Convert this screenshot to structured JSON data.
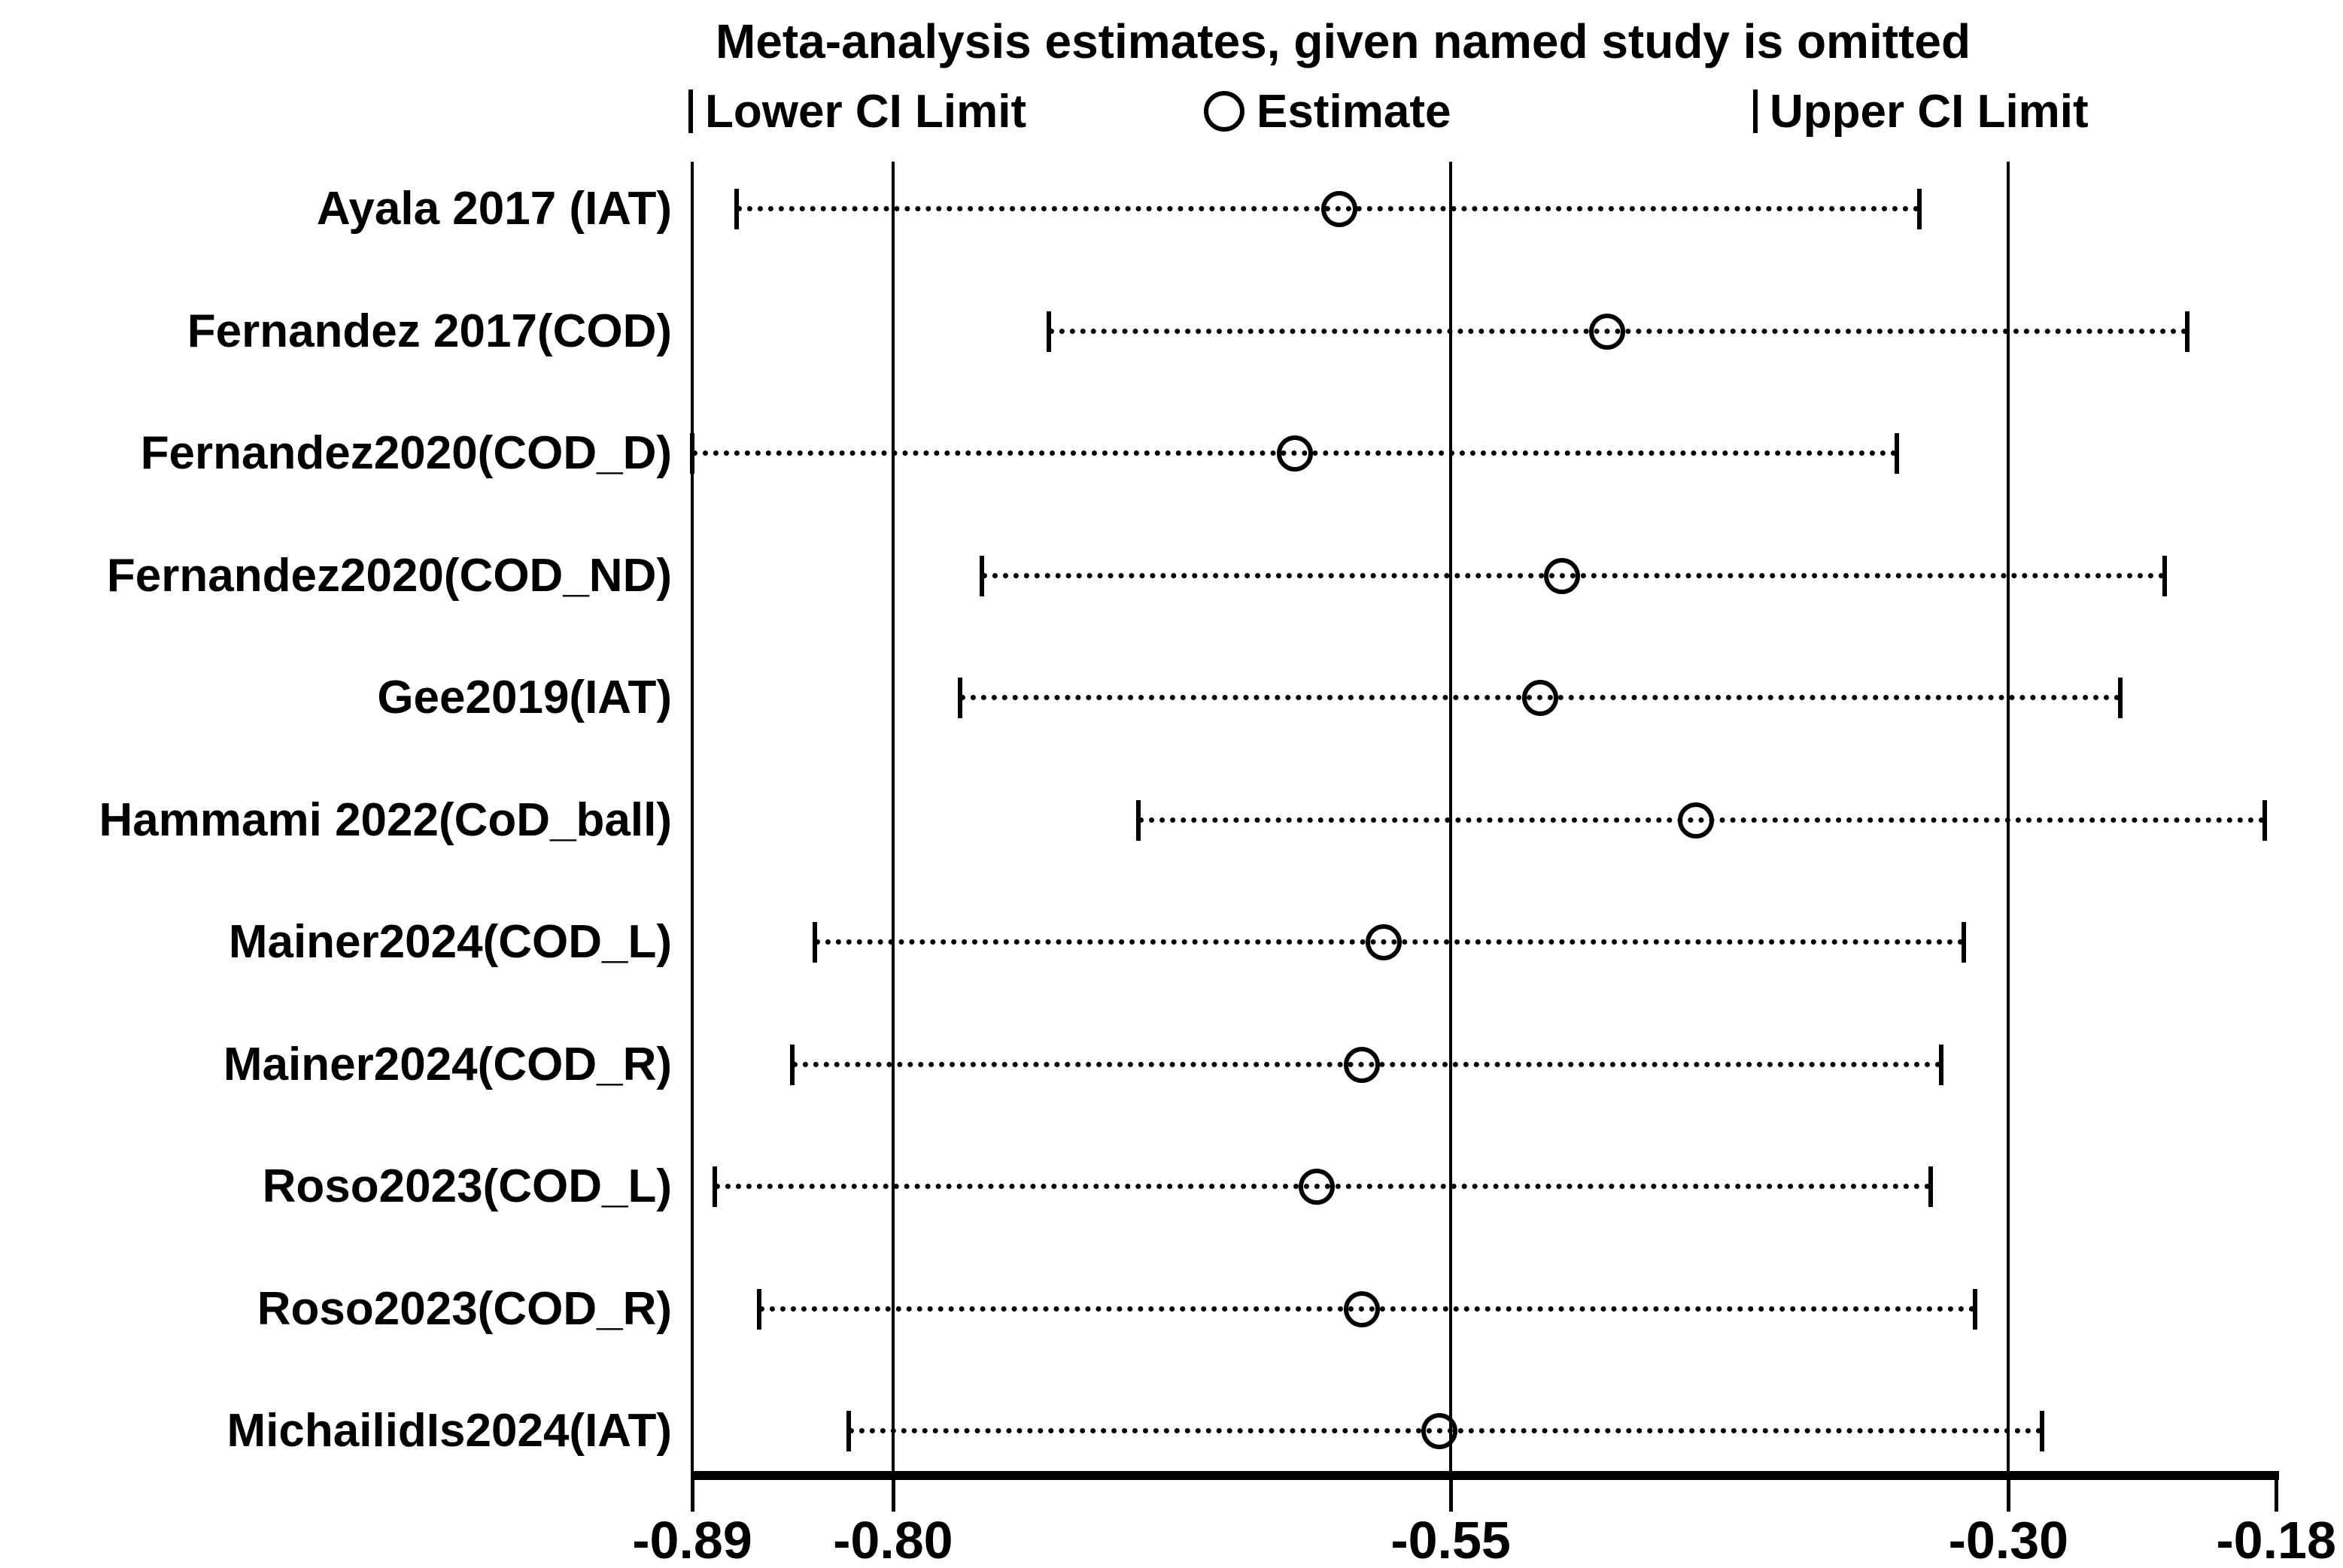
{
  "title": "Meta-analysis estimates, given named study is omitted",
  "legend": {
    "lower_label": "Lower CI Limit",
    "estimate_label": "Estimate",
    "upper_label": "Upper CI Limit"
  },
  "chart_data": {
    "type": "scatter",
    "subtype": "leave-one-out forest plot (meta-analysis sensitivity)",
    "title": "Meta-analysis estimates, given named study is omitted",
    "xlabel": "",
    "ylabel": "",
    "x_range": [
      -0.89,
      -0.18
    ],
    "x_ticks": [
      -0.89,
      -0.8,
      -0.55,
      -0.3,
      -0.18
    ],
    "x_tick_labels": [
      "-0.89",
      "-0.80",
      "-0.55",
      "-0.30",
      "-0.18"
    ],
    "gridlines_at": [
      -0.89,
      -0.8,
      -0.55,
      -0.3
    ],
    "grid": true,
    "legend_position": "top",
    "marker_legend": [
      "Lower CI Limit",
      "Estimate",
      "Upper CI Limit"
    ],
    "studies": [
      {
        "label": "Ayala 2017 (IAT)",
        "lower": -0.87,
        "estimate": -0.6,
        "upper": -0.34
      },
      {
        "label": "Fernandez 2017(COD)",
        "lower": -0.73,
        "estimate": -0.48,
        "upper": -0.22
      },
      {
        "label": "Fernandez2020(COD_D)",
        "lower": -0.89,
        "estimate": -0.62,
        "upper": -0.35
      },
      {
        "label": "Fernandez2020(COD_ND)",
        "lower": -0.76,
        "estimate": -0.5,
        "upper": -0.23
      },
      {
        "label": "Gee2019(IAT)",
        "lower": -0.77,
        "estimate": -0.51,
        "upper": -0.25
      },
      {
        "label": "Hammami 2022(CoD_ball)",
        "lower": -0.69,
        "estimate": -0.44,
        "upper": -0.185
      },
      {
        "label": "Mainer2024(COD_L)",
        "lower": -0.835,
        "estimate": -0.58,
        "upper": -0.32
      },
      {
        "label": "Mainer2024(COD_R)",
        "lower": -0.845,
        "estimate": -0.59,
        "upper": -0.33
      },
      {
        "label": "Roso2023(COD_L)",
        "lower": -0.88,
        "estimate": -0.61,
        "upper": -0.335
      },
      {
        "label": "Roso2023(COD_R)",
        "lower": -0.86,
        "estimate": -0.59,
        "upper": -0.315
      },
      {
        "label": "MichailidIs2024(IAT)",
        "lower": -0.82,
        "estimate": -0.555,
        "upper": -0.285
      }
    ],
    "colors": {
      "foreground": "#000000",
      "background": "#ffffff"
    }
  }
}
